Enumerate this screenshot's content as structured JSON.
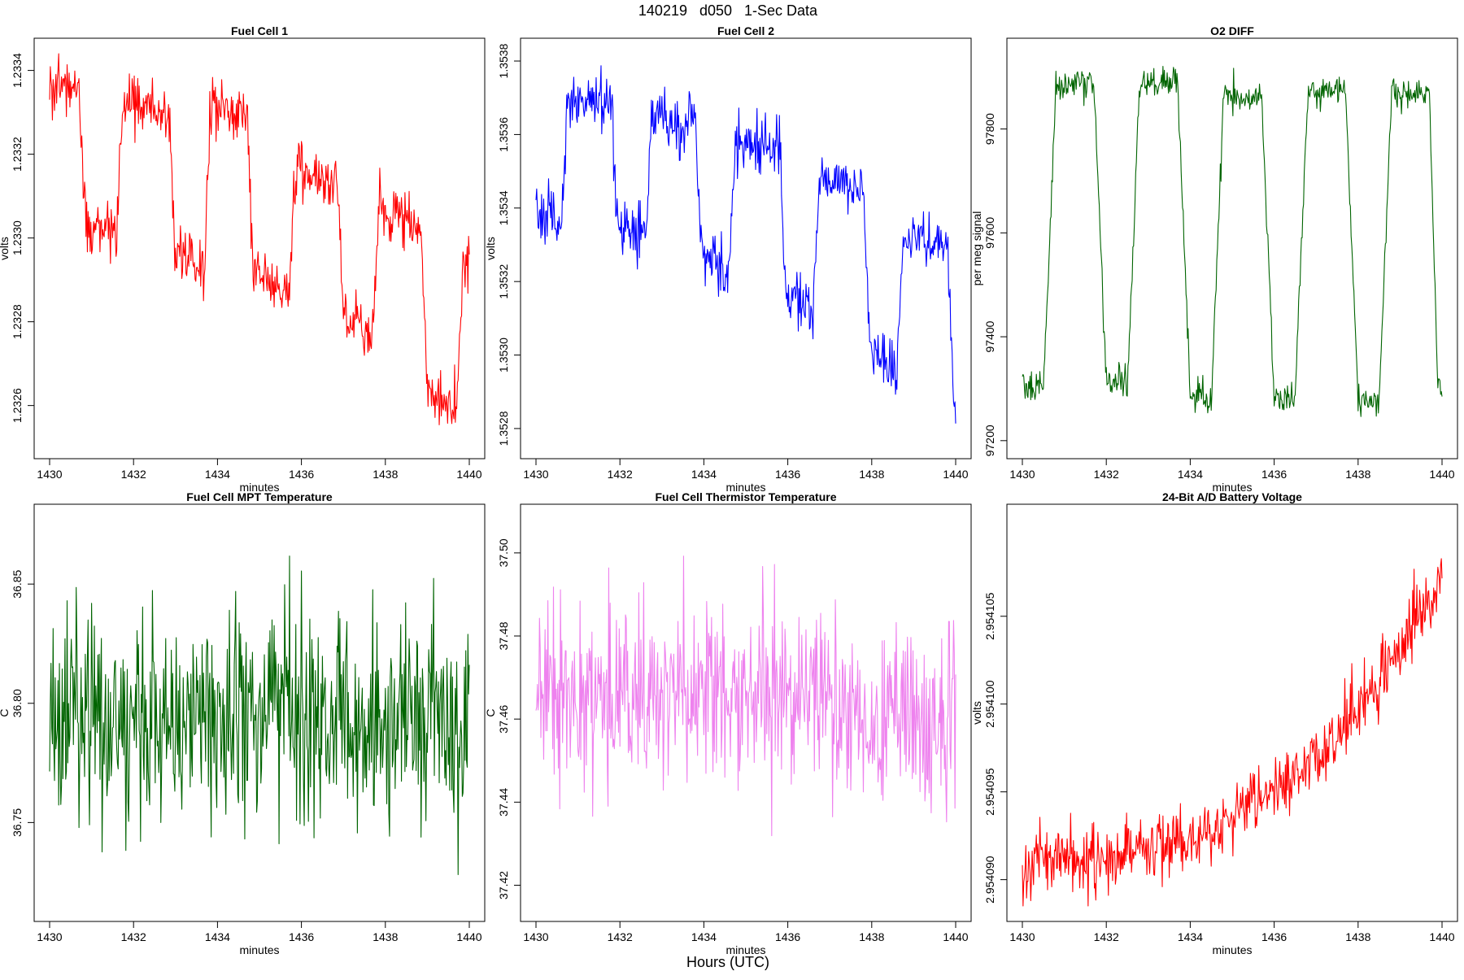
{
  "figure": {
    "title": "140219   d050   1-Sec Data",
    "footer": "Hours (UTC)"
  },
  "chart_data": [
    {
      "type": "line",
      "title": "Fuel Cell 1",
      "xlabel": "minutes",
      "ylabel": "volts",
      "color": "#ff0000",
      "xlim": [
        1430,
        1440
      ],
      "ylim": [
        1.23251,
        1.23344
      ],
      "xticks": [
        1430,
        1432,
        1434,
        1436,
        1438,
        1440
      ],
      "xtick_labels": [
        "1430",
        "1432",
        "1434",
        "1436",
        "1438",
        "1440"
      ],
      "yticks": [
        1.2326,
        1.2328,
        1.233,
        1.2332,
        1.2334
      ],
      "ytick_labels": [
        "1.2326",
        "1.2328",
        "1.2330",
        "1.2332",
        "1.2334"
      ],
      "noise": 3.5e-05,
      "series": [
        {
          "name": "Fuel Cell 1",
          "x": [
            1430.0,
            1430.7,
            1430.85,
            1431.6,
            1431.75,
            1432.85,
            1433.0,
            1433.7,
            1433.85,
            1434.7,
            1434.85,
            1435.7,
            1435.85,
            1436.85,
            1437.0,
            1437.7,
            1437.85,
            1438.85,
            1439.0,
            1439.7,
            1439.85,
            1440.0
          ],
          "values": [
            1.23338,
            1.23335,
            1.23304,
            1.23302,
            1.23332,
            1.2333,
            1.23296,
            1.23294,
            1.23332,
            1.2333,
            1.23292,
            1.23288,
            1.23316,
            1.23312,
            1.23282,
            1.23276,
            1.23306,
            1.23304,
            1.23264,
            1.2326,
            1.23292,
            1.23294
          ]
        }
      ]
    },
    {
      "type": "line",
      "title": "Fuel Cell 2",
      "xlabel": "minutes",
      "ylabel": "volts",
      "color": "#0000ff",
      "xlim": [
        1430,
        1440
      ],
      "ylim": [
        1.35276,
        1.35382
      ],
      "xticks": [
        1430,
        1432,
        1434,
        1436,
        1438,
        1440
      ],
      "xtick_labels": [
        "1430",
        "1432",
        "1434",
        "1436",
        "1438",
        "1440"
      ],
      "yticks": [
        1.3528,
        1.353,
        1.3532,
        1.3534,
        1.3536,
        1.3538
      ],
      "ytick_labels": [
        "1.3528",
        "1.3530",
        "1.3532",
        "1.3534",
        "1.3536",
        "1.3538"
      ],
      "noise": 4e-05,
      "series": [
        {
          "name": "Fuel Cell 2",
          "x": [
            1430.0,
            1430.6,
            1430.75,
            1431.8,
            1431.95,
            1432.6,
            1432.75,
            1433.8,
            1433.95,
            1434.6,
            1434.75,
            1435.8,
            1435.95,
            1436.6,
            1436.75,
            1437.8,
            1437.95,
            1438.6,
            1438.75,
            1439.8,
            1439.95,
            1440.0
          ],
          "values": [
            1.35339,
            1.35336,
            1.35368,
            1.35368,
            1.35334,
            1.35332,
            1.35365,
            1.35364,
            1.35326,
            1.35322,
            1.35359,
            1.35357,
            1.35316,
            1.35312,
            1.35349,
            1.35344,
            1.35302,
            1.35296,
            1.35332,
            1.3533,
            1.3529,
            1.3529
          ]
        }
      ]
    },
    {
      "type": "line",
      "title": "O2 DIFF",
      "xlabel": "minutes",
      "ylabel": "per meg signal",
      "color": "#006400",
      "xlim": [
        1430,
        1440
      ],
      "ylim": [
        97195,
        97945
      ],
      "xticks": [
        1430,
        1432,
        1434,
        1436,
        1438,
        1440
      ],
      "xtick_labels": [
        "1430",
        "1432",
        "1434",
        "1436",
        "1438",
        "1440"
      ],
      "yticks": [
        97200,
        97400,
        97600,
        97800
      ],
      "ytick_labels": [
        "97200",
        "97400",
        "97600",
        "97800"
      ],
      "noise": 15,
      "series": [
        {
          "name": "O2 DIFF",
          "x": [
            1430.0,
            1430.5,
            1430.8,
            1431.7,
            1432.0,
            1432.5,
            1432.8,
            1433.7,
            1434.0,
            1434.5,
            1434.8,
            1435.7,
            1436.0,
            1436.5,
            1436.8,
            1437.7,
            1438.0,
            1438.5,
            1438.8,
            1439.7,
            1439.9,
            1440.0
          ],
          "values": [
            97310,
            97300,
            97880,
            97890,
            97320,
            97310,
            97890,
            97890,
            97290,
            97280,
            97860,
            97860,
            97280,
            97280,
            97870,
            97870,
            97280,
            97270,
            97870,
            97870,
            97290,
            97290
          ]
        }
      ]
    },
    {
      "type": "line",
      "title": "Fuel Cell MPT Temperature",
      "xlabel": "minutes",
      "ylabel": "C",
      "color": "#006400",
      "xlim": [
        1430,
        1440
      ],
      "ylim": [
        36.715,
        36.877
      ],
      "xticks": [
        1430,
        1432,
        1434,
        1436,
        1438,
        1440
      ],
      "xtick_labels": [
        "1430",
        "1432",
        "1434",
        "1436",
        "1438",
        "1440"
      ],
      "yticks": [
        36.75,
        36.8,
        36.85
      ],
      "ytick_labels": [
        "36.75",
        "36.80",
        "36.85"
      ],
      "noise": 0.022,
      "series": [
        {
          "name": "Fuel Cell MPT Temperature",
          "x": [
            1430.0,
            1440.0
          ],
          "values": [
            36.793,
            36.793
          ]
        }
      ]
    },
    {
      "type": "line",
      "title": "Fuel Cell Thermistor Temperature",
      "xlabel": "minutes",
      "ylabel": "C",
      "color": "#ee82ee",
      "xlim": [
        1430,
        1440
      ],
      "ylim": [
        37.415,
        37.508
      ],
      "xticks": [
        1430,
        1432,
        1434,
        1436,
        1438,
        1440
      ],
      "xtick_labels": [
        "1430",
        "1432",
        "1434",
        "1436",
        "1438",
        "1440"
      ],
      "yticks": [
        37.42,
        37.44,
        37.46,
        37.48,
        37.5
      ],
      "ytick_labels": [
        "37.42",
        "37.44",
        "37.46",
        "37.48",
        "37.50"
      ],
      "noise": 0.011,
      "series": [
        {
          "name": "Fuel Cell Thermistor Temperature",
          "x": [
            1430.0,
            1435.0,
            1440.0
          ],
          "values": [
            37.466,
            37.465,
            37.46
          ]
        }
      ]
    },
    {
      "type": "line",
      "title": "24-Bit A/D Battery Voltage",
      "xlabel": "minutes",
      "ylabel": "volts",
      "color": "#ff0000",
      "xlim": [
        1430,
        1440
      ],
      "ylim": [
        2.9540885,
        2.9541105
      ],
      "xticks": [
        1430,
        1432,
        1434,
        1436,
        1438,
        1440
      ],
      "xtick_labels": [
        "1430",
        "1432",
        "1434",
        "1436",
        "1438",
        "1440"
      ],
      "yticks": [
        2.95409,
        2.954095,
        2.9541,
        2.954105
      ],
      "ytick_labels": [
        "2.954090",
        "2.954095",
        "2.954100",
        "2.954105"
      ],
      "noise": 9e-07,
      "series": [
        {
          "name": "24-Bit A/D Battery Voltage",
          "x": [
            1430.0,
            1430.3,
            1431.0,
            1432.0,
            1433.0,
            1434.0,
            1435.0,
            1436.0,
            1437.0,
            1438.0,
            1439.0,
            1440.0
          ],
          "values": [
            2.95409,
            2.9540915,
            2.9540913,
            2.9540912,
            2.9540917,
            2.9540923,
            2.9540935,
            2.954095,
            2.9540968,
            2.9540995,
            2.954103,
            2.9541075
          ]
        }
      ]
    }
  ]
}
